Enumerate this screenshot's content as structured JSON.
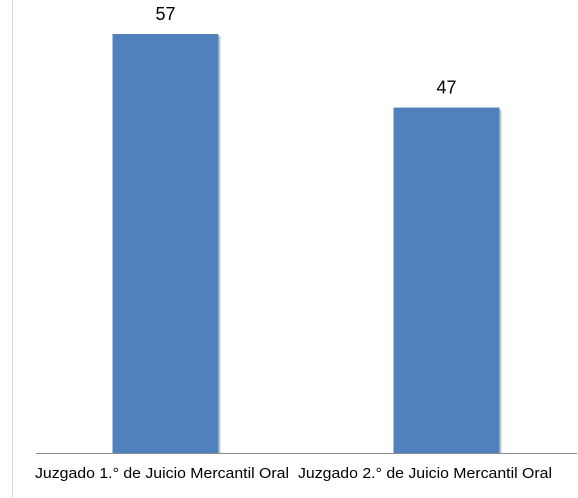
{
  "chart_data": {
    "type": "bar",
    "categories": [
      "Juzgado 1.° de Juicio Mercantil Oral",
      "Juzgado 2.° de Juicio Mercantil Oral"
    ],
    "values": [
      57,
      47
    ],
    "title": "",
    "xlabel": "",
    "ylabel": "",
    "ylim": [
      0,
      60
    ],
    "grid": false,
    "legend": "none",
    "data_labels": true,
    "bar_color": "#4F81BD",
    "axis_color": "#8C8C8C"
  }
}
